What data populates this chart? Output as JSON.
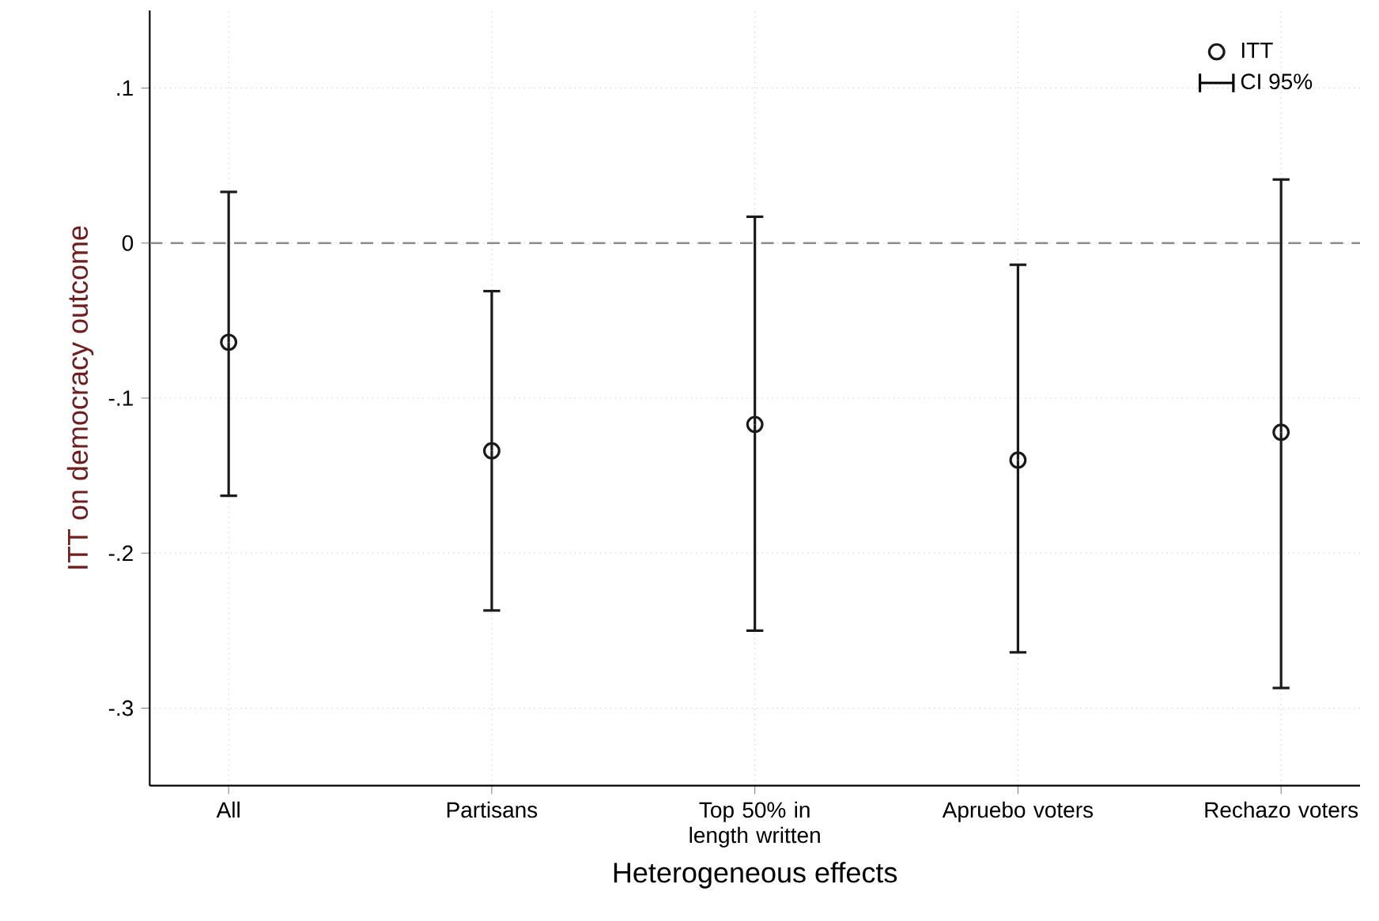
{
  "chart_data": {
    "type": "scatter",
    "xlabel": "Heterogeneous effects",
    "ylabel": "ITT on democracy outcome",
    "categories": [
      "All",
      "Partisans",
      "Top 50% in length written",
      "Apruebo voters",
      "Rechazo voters"
    ],
    "series": [
      {
        "name": "ITT",
        "color": "#1a1a1a",
        "values": [
          -0.064,
          -0.134,
          -0.117,
          -0.14,
          -0.122
        ],
        "errors": [
          [
            -0.163,
            0.033
          ],
          [
            -0.237,
            -0.031
          ],
          [
            -0.25,
            0.017
          ],
          [
            -0.264,
            -0.014
          ],
          [
            -0.287,
            0.041
          ]
        ]
      }
    ],
    "ylim": [
      -0.35,
      0.15
    ],
    "yticks": [
      {
        "value": -0.3,
        "label": "-.3"
      },
      {
        "value": -0.2,
        "label": "-.2"
      },
      {
        "value": -0.1,
        "label": "-.1"
      },
      0,
      {
        "value": 0.1,
        "label": ".1"
      }
    ],
    "ref_lines": [
      {
        "axis": "y",
        "value": 0,
        "color": "#8c8c8c",
        "line_style": "dashed"
      }
    ],
    "annotations": [
      "CI 95%"
    ],
    "grid": true,
    "legend": "top right",
    "marker": "circle"
  }
}
